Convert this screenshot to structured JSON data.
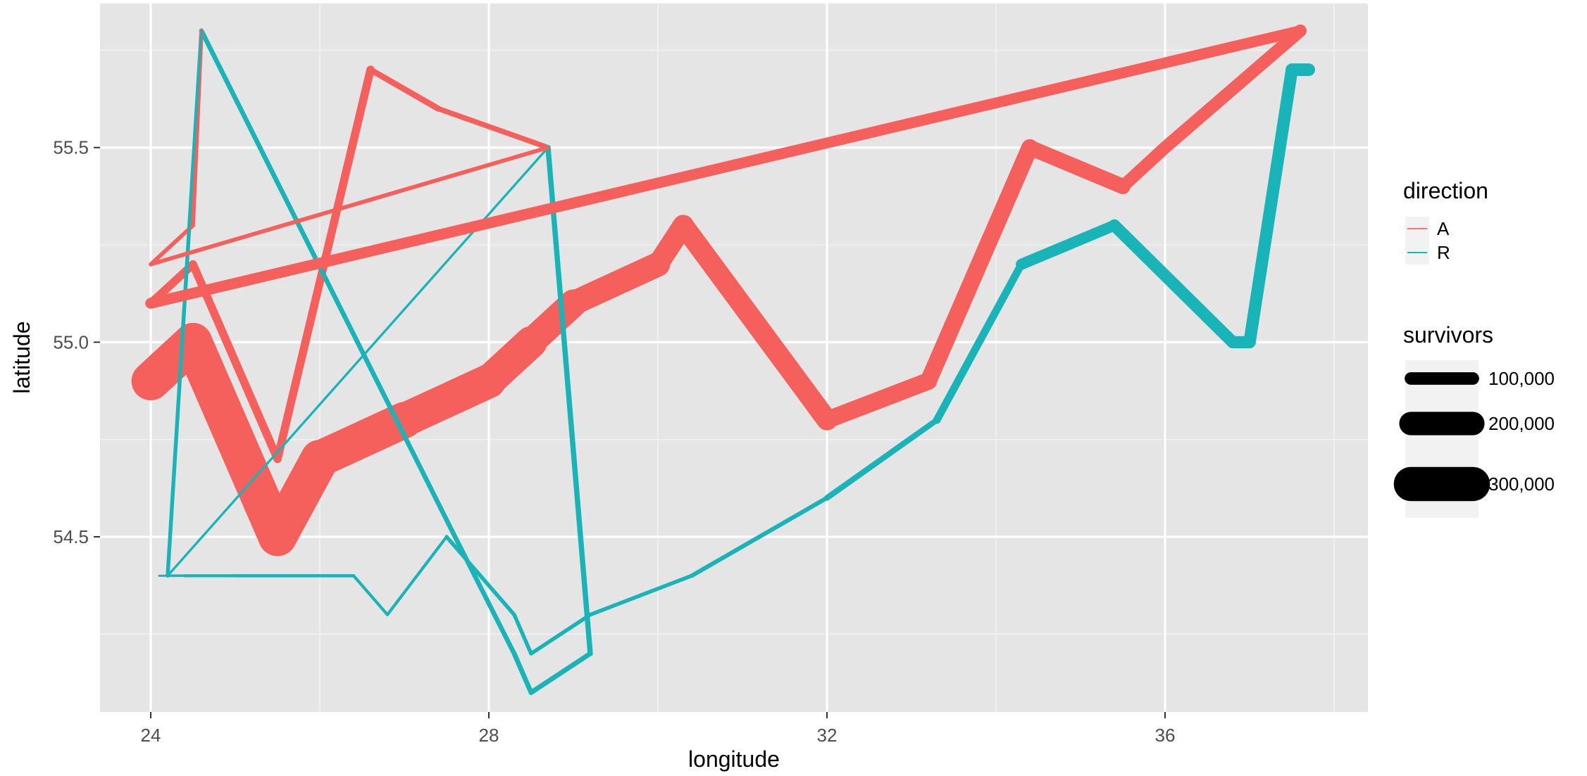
{
  "chart_data": {
    "type": "line",
    "xlabel": "longitude",
    "ylabel": "latitude",
    "xlim": [
      23.4,
      38.4
    ],
    "ylim": [
      54.05,
      55.87
    ],
    "x_ticks": [
      24,
      28,
      32,
      36
    ],
    "x_tick_labels": [
      "24",
      "28",
      "32",
      "36"
    ],
    "x_minor": [
      26,
      30,
      34,
      38
    ],
    "y_ticks": [
      54.5,
      55.0,
      55.5
    ],
    "y_tick_labels": [
      "54.5",
      "55.0",
      "55.5"
    ],
    "y_minor": [
      54.25,
      54.75,
      55.25,
      55.75
    ],
    "grid": true,
    "panel_background": "#e5e5e5",
    "color_legend": {
      "title": "direction",
      "position": "right",
      "entries": [
        {
          "label": "A",
          "color": "#f8766d"
        },
        {
          "label": "R",
          "color": "#00bfc4"
        }
      ]
    },
    "size_legend": {
      "title": "survivors",
      "position": "right",
      "entries": [
        {
          "label": "100,000",
          "value": 100000
        },
        {
          "label": "200,000",
          "value": 200000
        },
        {
          "label": "300,000",
          "value": 300000
        }
      ]
    },
    "series": [
      {
        "direction": "A",
        "color": "#f5605c",
        "points": [
          {
            "lon": 24.0,
            "lat": 54.9,
            "survivors": 340000
          },
          {
            "lon": 24.5,
            "lat": 55.0,
            "survivors": 340000
          },
          {
            "lon": 25.5,
            "lat": 54.5,
            "survivors": 340000
          },
          {
            "lon": 26.0,
            "lat": 54.7,
            "survivors": 320000
          },
          {
            "lon": 27.0,
            "lat": 54.8,
            "survivors": 300000
          },
          {
            "lon": 28.0,
            "lat": 54.9,
            "survivors": 280000
          },
          {
            "lon": 28.5,
            "lat": 55.0,
            "survivors": 240000
          },
          {
            "lon": 29.0,
            "lat": 55.1,
            "survivors": 210000
          },
          {
            "lon": 30.0,
            "lat": 55.2,
            "survivors": 180000
          },
          {
            "lon": 30.3,
            "lat": 55.3,
            "survivors": 175000
          },
          {
            "lon": 32.0,
            "lat": 54.8,
            "survivors": 145000
          },
          {
            "lon": 33.2,
            "lat": 54.9,
            "survivors": 140000
          },
          {
            "lon": 34.4,
            "lat": 55.5,
            "survivors": 127100
          },
          {
            "lon": 35.5,
            "lat": 55.4,
            "survivors": 100000
          },
          {
            "lon": 36.0,
            "lat": 55.5,
            "survivors": 100000
          },
          {
            "lon": 37.6,
            "lat": 55.8,
            "survivors": 100000
          }
        ]
      },
      {
        "direction": "R",
        "color": "#19b4b8",
        "points": [
          {
            "lon": 37.7,
            "lat": 55.7,
            "survivors": 100000
          },
          {
            "lon": 37.5,
            "lat": 55.7,
            "survivors": 98000
          },
          {
            "lon": 37.0,
            "lat": 55.0,
            "survivors": 97000
          },
          {
            "lon": 36.8,
            "lat": 55.0,
            "survivors": 96000
          },
          {
            "lon": 35.4,
            "lat": 55.3,
            "survivors": 87000
          },
          {
            "lon": 34.3,
            "lat": 55.2,
            "survivors": 55000
          },
          {
            "lon": 33.3,
            "lat": 54.8,
            "survivors": 37000
          },
          {
            "lon": 32.0,
            "lat": 54.6,
            "survivors": 24000
          },
          {
            "lon": 30.4,
            "lat": 54.4,
            "survivors": 20000
          },
          {
            "lon": 29.2,
            "lat": 54.3,
            "survivors": 20000
          },
          {
            "lon": 28.5,
            "lat": 54.2,
            "survivors": 20000
          },
          {
            "lon": 28.3,
            "lat": 54.3,
            "survivors": 20000
          },
          {
            "lon": 27.5,
            "lat": 54.5,
            "survivors": 12000
          },
          {
            "lon": 26.8,
            "lat": 54.3,
            "survivors": 12000
          },
          {
            "lon": 26.4,
            "lat": 54.4,
            "survivors": 14000
          },
          {
            "lon": 25.0,
            "lat": 54.4,
            "survivors": 12000
          },
          {
            "lon": 24.4,
            "lat": 54.4,
            "survivors": 8000
          },
          {
            "lon": 24.2,
            "lat": 54.4,
            "survivors": 4000
          },
          {
            "lon": 24.1,
            "lat": 54.4,
            "survivors": 4000
          }
        ]
      },
      {
        "direction": "A",
        "color": "#f5605c",
        "points": [
          {
            "lon": 24.0,
            "lat": 55.1,
            "survivors": 60000
          },
          {
            "lon": 24.5,
            "lat": 55.2,
            "survivors": 60000
          },
          {
            "lon": 25.5,
            "lat": 54.7,
            "survivors": 60000
          },
          {
            "lon": 26.6,
            "lat": 55.7,
            "survivors": 40000
          },
          {
            "lon": 27.4,
            "lat": 55.6,
            "survivors": 33000
          },
          {
            "lon": 28.7,
            "lat": 55.5,
            "survivors": 33000
          }
        ]
      },
      {
        "direction": "R",
        "color": "#19b4b8",
        "points": [
          {
            "lon": 28.7,
            "lat": 55.5,
            "survivors": 33000
          },
          {
            "lon": 29.2,
            "lat": 54.2,
            "survivors": 30000
          },
          {
            "lon": 28.5,
            "lat": 54.1,
            "survivors": 30000
          },
          {
            "lon": 28.3,
            "lat": 54.2,
            "survivors": 28000
          },
          {
            "lon": 27.6,
            "lat": 54.5,
            "survivors": 28000
          },
          {
            "lon": 24.6,
            "lat": 55.8,
            "survivors": 20000
          },
          {
            "lon": 24.2,
            "lat": 54.4,
            "survivors": 20000
          }
        ]
      },
      {
        "direction": "A",
        "color": "#f5605c",
        "points": [
          {
            "lon": 24.0,
            "lat": 55.2,
            "survivors": 22000
          },
          {
            "lon": 24.5,
            "lat": 55.3,
            "survivors": 22000
          },
          {
            "lon": 24.6,
            "lat": 55.8,
            "survivors": 6000
          }
        ]
      },
      {
        "direction": "R",
        "color": "#19b4b8",
        "points": [
          {
            "lon": 24.6,
            "lat": 55.8,
            "survivors": 6000
          },
          {
            "lon": 24.2,
            "lat": 54.4,
            "survivors": 6000
          },
          {
            "lon": 28.7,
            "lat": 55.5,
            "survivors": 2000
          }
        ]
      },
      {
        "direction": "A",
        "color": "#f5605c",
        "points": [
          {
            "lon": 24.0,
            "lat": 55.1,
            "survivors": 85000
          },
          {
            "lon": 37.6,
            "lat": 55.8,
            "survivors": 100000
          }
        ]
      },
      {
        "direction": "A",
        "color": "#f5605c",
        "points": [
          {
            "lon": 24.0,
            "lat": 55.2,
            "survivors": 22000
          },
          {
            "lon": 28.7,
            "lat": 55.5,
            "survivors": 33000
          }
        ]
      }
    ]
  }
}
